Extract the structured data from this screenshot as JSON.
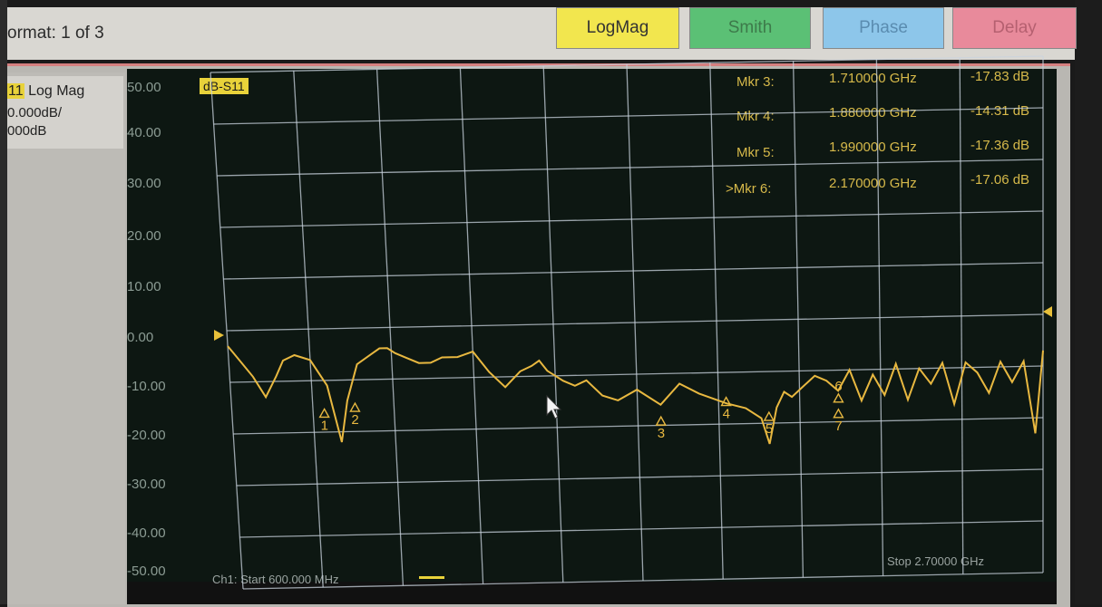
{
  "toolbar": {
    "format_label": "ormat: 1 of 3",
    "buttons": {
      "logmag": "LogMag",
      "smith": "Smith",
      "phase": "Phase",
      "delay": "Delay"
    }
  },
  "sidebar": {
    "trace_chip": "11",
    "title": "Log Mag",
    "scale": "0.000dB/",
    "ref": "000dB"
  },
  "display": {
    "trace_label": "dB-S11",
    "start_label": "Ch1: Start  600.000 MHz",
    "stop_label": "Stop  2.70000 GHz",
    "markers_readout": [
      {
        "label": "Mkr  3:",
        "freq": "1.710000 GHz",
        "value": "-17.83 dB"
      },
      {
        "label": "Mkr  4:",
        "freq": "1.880000 GHz",
        "value": "-14.31 dB"
      },
      {
        "label": "Mkr  5:",
        "freq": "1.990000 GHz",
        "value": "-17.36 dB"
      },
      {
        "label": ">Mkr  6:",
        "freq": "2.170000 GHz",
        "value": "-17.06 dB"
      }
    ],
    "marker_numbers": [
      "1",
      "2",
      "3",
      "4",
      "5",
      "6",
      "7"
    ],
    "trace_color": "#e8b840",
    "grid_color": "#c9d3de"
  },
  "chart_data": {
    "type": "line",
    "ylabel": "dB-S11",
    "y_ticks": [
      "50.00",
      "40.00",
      "30.00",
      "20.00",
      "10.00",
      "0.00",
      "-10.00",
      "-20.00",
      "-30.00",
      "-40.00",
      "-50.00"
    ],
    "ylim": [
      -50,
      50
    ],
    "xlim_ghz": [
      0.6,
      2.7
    ],
    "series": [
      {
        "x_ghz": [
          0.6,
          0.63,
          0.66,
          0.69,
          0.72,
          0.74,
          0.77,
          0.81,
          0.85,
          0.88,
          0.9,
          0.93,
          0.97,
          0.99,
          1.01,
          1.03,
          1.06,
          1.09,
          1.12,
          1.15,
          1.19,
          1.23,
          1.27,
          1.31,
          1.35,
          1.38,
          1.4,
          1.42,
          1.44,
          1.46,
          1.49,
          1.52,
          1.56,
          1.6,
          1.65,
          1.71,
          1.76,
          1.81,
          1.88,
          1.93,
          1.97,
          1.99,
          2.01,
          2.03,
          2.05,
          2.08,
          2.11,
          2.14,
          2.17,
          2.2,
          2.23,
          2.26,
          2.29,
          2.32,
          2.35,
          2.38,
          2.41,
          2.44,
          2.47,
          2.5,
          2.53,
          2.56,
          2.59,
          2.62,
          2.65,
          2.68,
          2.7
        ],
        "y_db": [
          -3,
          -6,
          -9,
          -13,
          -9,
          -6,
          -5,
          -6,
          -11,
          -22,
          -14,
          -7,
          -5,
          -4,
          -4,
          -5,
          -6,
          -7,
          -7,
          -6,
          -6,
          -5,
          -9,
          -12,
          -9,
          -8,
          -7,
          -9,
          -10,
          -11,
          -12,
          -11,
          -14,
          -15,
          -13,
          -16,
          -12,
          -14,
          -16,
          -17,
          -19,
          -24,
          -17,
          -14,
          -15,
          -13,
          -11,
          -12,
          -14,
          -10,
          -16,
          -11,
          -15,
          -9,
          -16,
          -10,
          -13,
          -9,
          -17,
          -9,
          -11,
          -15,
          -9,
          -13,
          -9,
          -23,
          -7
        ]
      }
    ],
    "markers": [
      {
        "n": "1",
        "x_ghz": 0.84,
        "y_db": -15
      },
      {
        "n": "2",
        "x_ghz": 0.92,
        "y_db": -14
      },
      {
        "n": "3",
        "x_ghz": 1.71,
        "y_db": -17.83
      },
      {
        "n": "4",
        "x_ghz": 1.88,
        "y_db": -14.31
      },
      {
        "n": "5",
        "x_ghz": 1.99,
        "y_db": -17.36
      },
      {
        "n": "6",
        "x_ghz": 2.17,
        "y_db": -17.06
      },
      {
        "n": "7",
        "x_ghz": 2.17,
        "y_db": -17.06
      }
    ],
    "grid": true
  }
}
